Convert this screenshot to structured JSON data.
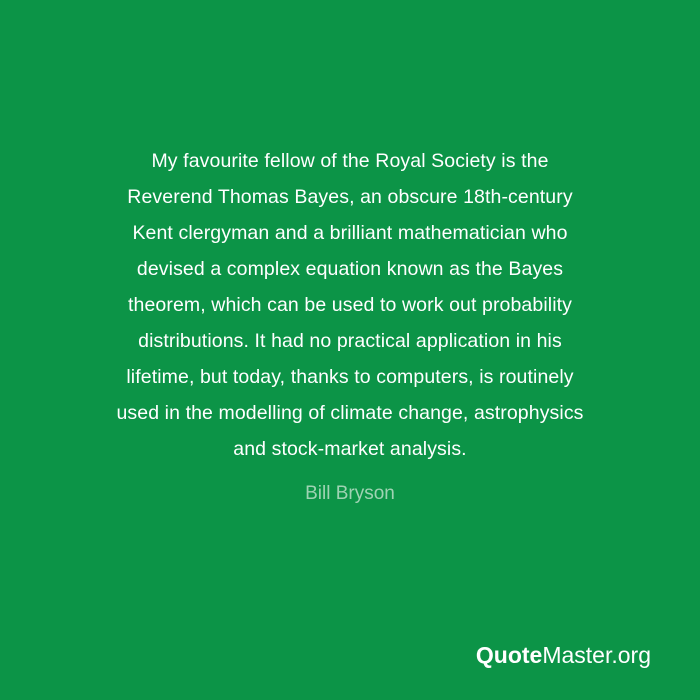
{
  "quote": {
    "lines": [
      "My favourite fellow of the Royal Society is the",
      "Reverend Thomas Bayes, an obscure 18th-century",
      "Kent clergyman and a brilliant mathematician who",
      "devised a complex equation known as the Bayes",
      "theorem, which can be used to work out probability",
      "distributions. It had no practical application in his",
      "lifetime, but today, thanks to computers, is routinely",
      "used in the modelling of climate change, astrophysics",
      "and stock-market analysis."
    ],
    "author": "Bill Bryson"
  },
  "brand": {
    "bold": "Quote",
    "rest": "Master.org"
  },
  "colors": {
    "background": "#0c9447",
    "text": "#ffffff",
    "author": "#9fd3b3"
  }
}
